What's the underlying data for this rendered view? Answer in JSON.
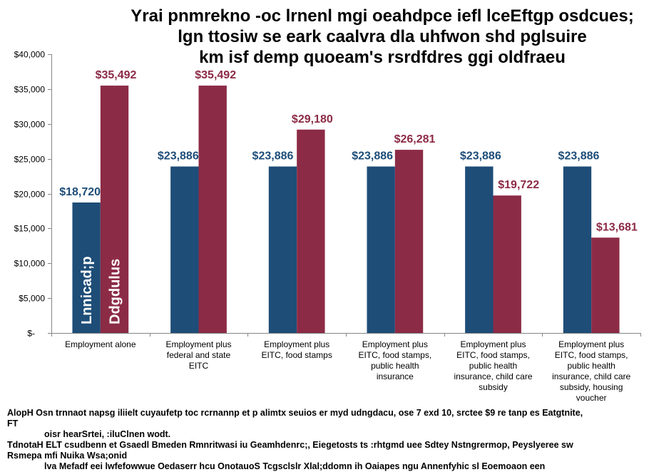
{
  "chart_data": {
    "type": "bar",
    "title": "Yrai pnmrekno -oc lrnenl mgi oeahdpce iefl lceEftgp osdcues;\nlgn ttosiw se eark caalvra dla uhfwon shd pglsuire\nkm isf demp quoeam's rsrdfdres ggi oldfraeu",
    "categories": [
      "Employment alone",
      "Employment plus federal and state EITC",
      "Employment plus EITC, food stamps",
      "Employment plus EITC, food stamps, public health insurance",
      "Employment plus EITC, food stamps, public health insurance, child care subsidy",
      "Employment plus EITC, food stamps, public health insurance, child care subsidy, housing voucher"
    ],
    "series": [
      {
        "name": "Lnnicad;p",
        "color": "#1E4D78",
        "values": [
          18720,
          23886,
          23886,
          23886,
          23886,
          23886
        ],
        "data_labels": [
          "$18,720",
          "$23,886",
          "$23,886",
          "$23,886",
          "$23,886",
          "$23,886"
        ]
      },
      {
        "name": "Ddgdulus",
        "color": "#8C2B46",
        "values": [
          35492,
          35492,
          29180,
          26281,
          19722,
          13681
        ],
        "data_labels": [
          "$35,492",
          "$35,492",
          "$29,180",
          "$26,281",
          "$19,722",
          "$13,681"
        ]
      }
    ],
    "ylim": [
      0,
      40000
    ],
    "yticks": [
      0,
      5000,
      10000,
      15000,
      20000,
      25000,
      30000,
      35000,
      40000
    ],
    "ytick_labels": [
      "$-",
      "$5,000",
      "$10,000",
      "$15,000",
      "$20,000",
      "$25,000",
      "$30,000",
      "$35,000",
      "$40,000"
    ],
    "grid": false,
    "legend": "inside-first-group-bars",
    "axis_color": "#868686"
  },
  "notes": [
    {
      "lines": [
        "AlopH Osn trnnaot napsg iliielt cuyaufetp toc rcrnannp et p alimtx seuios er myd udngdacu, ose 7 exd 10, srctee $9 re tanp es Eatgtnite,",
        "FT"
      ],
      "sub_line": "oisr hearSrtei, :iluClnen wodt."
    },
    {
      "lines": [
        "TdnotaH ELT csudbenn et Gsaedl Bmeden Rmnritwasi iu Geamhdenrc;, Eiegetosts ts :rhtgmd uee Sdtey Nstngrermop, Peyslyeree sw",
        "Rsmepa mfi Nuika Wsa;onid"
      ],
      "sub_line": "lva Mefadf eei lwfefowwue Oedaserr hcu OnotauoS Tcgsclslr Xlal;ddomn ih Oaiapes ngu Annenfyhic sl Eoemoaon een"
    }
  ]
}
